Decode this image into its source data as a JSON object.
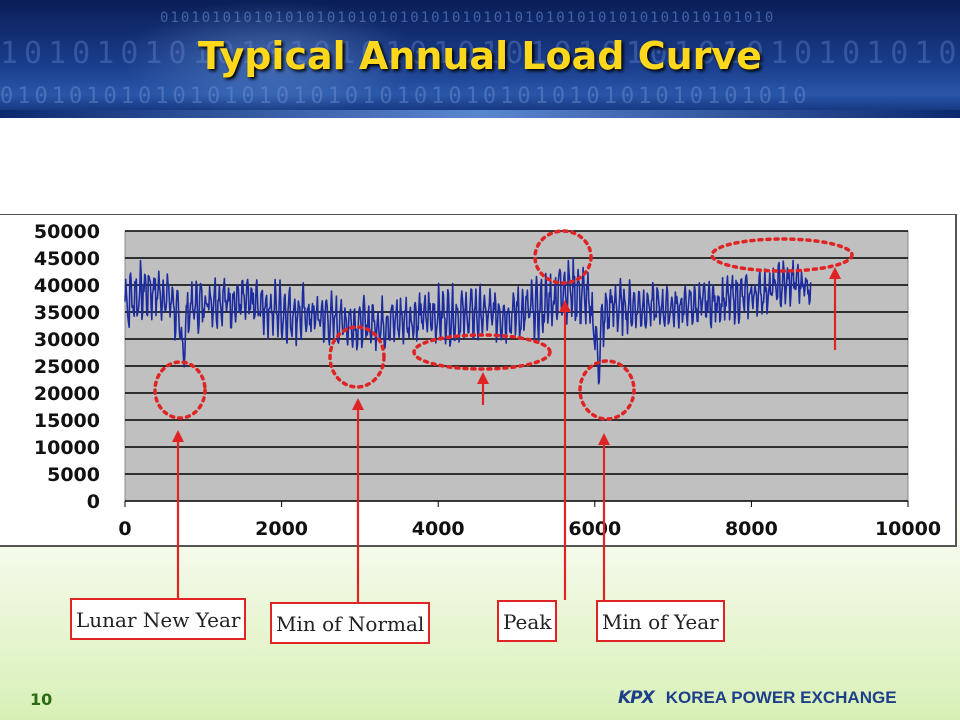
{
  "header": {
    "title": "Typical Annual Load Curve"
  },
  "footer": {
    "page_number": "10",
    "logo_text": "KPX",
    "org_name": "KOREA POWER EXCHANGE"
  },
  "annotations": [
    {
      "label": "Lunar New Year"
    },
    {
      "label": "Min of Normal"
    },
    {
      "label": "Peak"
    },
    {
      "label": "Min of Year"
    }
  ],
  "colors": {
    "series": "#1c2c9e",
    "plot_bg": "#c0c0c0",
    "annotation": "#e02424",
    "title": "#ffd81c"
  },
  "chart_data": {
    "type": "line",
    "title": "",
    "xlabel": "",
    "ylabel": "",
    "xlim": [
      0,
      10000
    ],
    "ylim": [
      0,
      50000
    ],
    "x_ticks": [
      0,
      2000,
      4000,
      6000,
      8000,
      10000
    ],
    "y_ticks": [
      0,
      5000,
      10000,
      15000,
      20000,
      25000,
      30000,
      35000,
      40000,
      45000,
      50000
    ],
    "grid": true,
    "legend": "none",
    "series": [
      {
        "x": [
          0,
          300,
          600,
          700,
          750,
          800,
          1100,
          1500,
          2000,
          2500,
          3000,
          3300,
          3600,
          4000,
          4500,
          5000,
          5300,
          5500,
          5600,
          5700,
          5900,
          6000,
          6050,
          6100,
          6200,
          6500,
          7000,
          7500,
          8000,
          8400,
          8600,
          8760
        ],
        "max": [
          45000,
          45500,
          44000,
          38000,
          32000,
          41000,
          43000,
          42500,
          41500,
          40000,
          38000,
          38500,
          39500,
          40500,
          40500,
          41000,
          42000,
          45000,
          47000,
          46000,
          44000,
          38000,
          31000,
          40000,
          42000,
          41000,
          40000,
          41500,
          43000,
          45000,
          45500,
          44000
        ],
        "min": [
          29000,
          33000,
          31000,
          26000,
          23000,
          30000,
          32000,
          31000,
          29000,
          28000,
          27500,
          27500,
          28000,
          28500,
          28500,
          28500,
          29000,
          31000,
          33000,
          32000,
          31000,
          26000,
          19500,
          27000,
          30000,
          31000,
          31500,
          32000,
          33000,
          35000,
          36000,
          35000
        ]
      }
    ],
    "annotations": [
      {
        "label": "Lunar New Year",
        "x": 700,
        "y": 20000
      },
      {
        "label": "Min of Normal",
        "x": 3000,
        "y": 27000
      },
      {
        "label": "Peak",
        "x": 5650,
        "y": 45000
      },
      {
        "label": "Min of Year",
        "x": 6100,
        "y": 20000
      }
    ]
  }
}
